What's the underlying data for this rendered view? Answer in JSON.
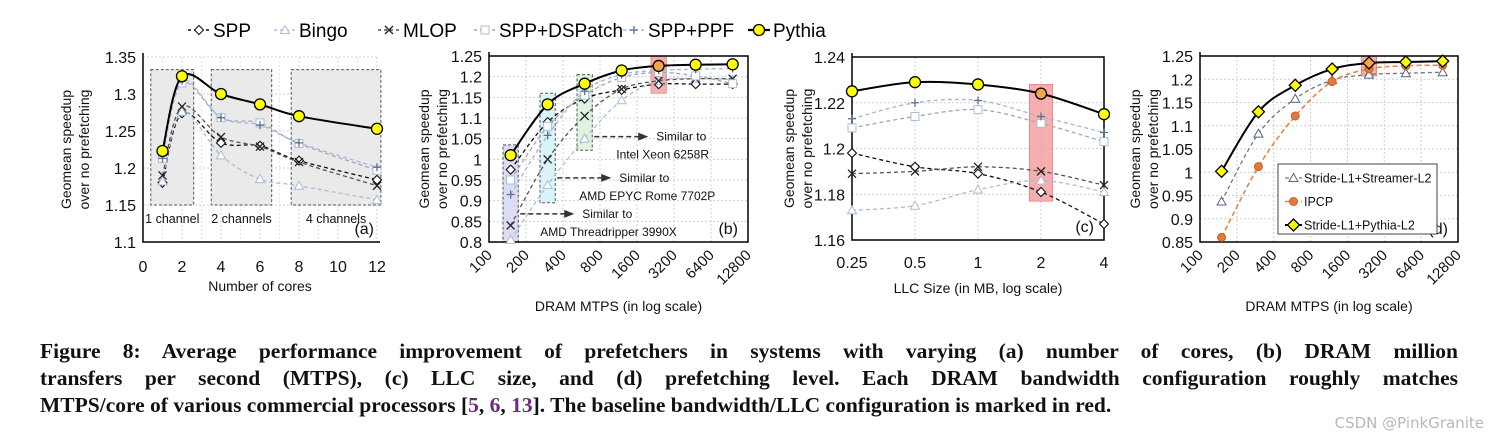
{
  "legend": [
    "SPP",
    "Bingo",
    "MLOP",
    "SPP+DSPatch",
    "SPP+PPF",
    "Pythia"
  ],
  "colors": {
    "pythia_marker": "#ffff00",
    "baseline_highlight": "#f4a0a0",
    "ipcp": "#e07b39",
    "ref": "#6b2d7b"
  },
  "chart_data": [
    {
      "type": "line",
      "panel_label": "(a)",
      "xlabel": "Number of cores",
      "ylabel": [
        "Geomean speedup",
        "over no prefetching"
      ],
      "xscale": "linear",
      "xlim": [
        0,
        12
      ],
      "ylim": [
        1.1,
        1.35
      ],
      "grid": true,
      "xticks": [
        0,
        2,
        4,
        6,
        8,
        10,
        12
      ],
      "yticks": [
        "1.1",
        "1.15",
        "1.2",
        "1.25",
        "1.3",
        "1.35"
      ],
      "x": [
        1,
        2,
        4,
        6,
        8,
        12
      ],
      "series": [
        {
          "name": "SPP",
          "values": [
            1.18,
            1.274,
            1.234,
            1.23,
            1.21,
            1.184
          ]
        },
        {
          "name": "Bingo",
          "values": [
            1.182,
            1.276,
            1.217,
            1.185,
            1.176,
            1.157
          ]
        },
        {
          "name": "MLOP",
          "values": [
            1.19,
            1.283,
            1.242,
            1.229,
            1.208,
            1.176
          ]
        },
        {
          "name": "SPP+DSPatch",
          "values": [
            1.213,
            1.315,
            1.268,
            1.261,
            1.233,
            1.197
          ]
        },
        {
          "name": "SPP+PPF",
          "values": [
            1.213,
            1.318,
            1.268,
            1.258,
            1.234,
            1.201
          ]
        },
        {
          "name": "Pythia",
          "values": [
            1.223,
            1.324,
            1.3,
            1.286,
            1.27,
            1.253
          ]
        }
      ],
      "regions": [
        {
          "label": "1 channel",
          "x": [
            0.4,
            2.6
          ],
          "y": [
            1.15,
            1.333
          ],
          "color": "#e8e8e8"
        },
        {
          "label": "2 channels",
          "x": [
            3.5,
            6.6
          ],
          "y": [
            1.15,
            1.333
          ],
          "color": "#e8e8e8"
        },
        {
          "label": "4 channels",
          "x": [
            7.6,
            12.2
          ],
          "y": [
            1.15,
            1.333
          ],
          "color": "#e8e8e8"
        }
      ]
    },
    {
      "type": "line",
      "panel_label": "(b)",
      "xlabel": "DRAM MTPS (in log scale)",
      "ylabel": [
        "Geomean speedup",
        "over no prefetching"
      ],
      "xscale": "log",
      "xlim": [
        100,
        12800
      ],
      "ylim": [
        0.8,
        1.25
      ],
      "grid": true,
      "xticks": [
        100,
        200,
        400,
        800,
        1600,
        3200,
        6400,
        12800
      ],
      "yticks": [
        "0.8",
        "0.85",
        "0.9",
        "0.95",
        "1",
        "1.05",
        "1.1",
        "1.15",
        "1.2",
        "1.25"
      ],
      "x": [
        150,
        300,
        600,
        1200,
        2400,
        4800,
        9600
      ],
      "series": [
        {
          "name": "SPP",
          "values": [
            0.975,
            1.09,
            1.147,
            1.168,
            1.182,
            1.182,
            1.182
          ]
        },
        {
          "name": "Bingo",
          "values": [
            0.805,
            0.938,
            1.05,
            1.143,
            1.19,
            1.195,
            1.193
          ]
        },
        {
          "name": "MLOP",
          "values": [
            0.84,
            1.0,
            1.105,
            1.17,
            1.19,
            1.195,
            1.195
          ]
        },
        {
          "name": "SPP+DSPatch",
          "values": [
            0.95,
            1.08,
            1.155,
            1.198,
            1.21,
            1.202,
            1.183
          ]
        },
        {
          "name": "SPP+PPF",
          "values": [
            0.915,
            1.058,
            1.165,
            1.205,
            1.215,
            1.218,
            1.22
          ]
        },
        {
          "name": "Pythia",
          "values": [
            1.01,
            1.133,
            1.183,
            1.215,
            1.226,
            1.229,
            1.23
          ]
        }
      ],
      "regions": [
        {
          "x": [
            130,
            173
          ],
          "y": [
            0.8,
            1.035
          ],
          "color": "#d8d8f4"
        },
        {
          "x": [
            260,
            346
          ],
          "y": [
            0.895,
            1.16
          ],
          "color": "#d6f4f8"
        },
        {
          "x": [
            520,
            692
          ],
          "y": [
            1.022,
            1.205
          ],
          "color": "#dcf2dc"
        },
        {
          "x": [
            2080,
            2770
          ],
          "y": [
            1.16,
            1.25
          ],
          "color": "#f4a0a0",
          "solid": true
        }
      ],
      "annotations": [
        {
          "text": [
            "Similar to",
            "Intel Xeon 6258R"
          ],
          "from": [
            692,
            1.055
          ]
        },
        {
          "text": [
            "Similar to",
            "AMD EPYC Rome 7702P"
          ],
          "from": [
            346,
            0.955
          ]
        },
        {
          "text": [
            "Similar to",
            "AMD Threadripper 3990X"
          ],
          "from": [
            173,
            0.868
          ]
        }
      ]
    },
    {
      "type": "line",
      "panel_label": "(c)",
      "xlabel": "LLC Size (in MB, log scale)",
      "ylabel": [
        "Geomean speedup",
        "over no prefetching"
      ],
      "xscale": "log",
      "xlim": [
        0.25,
        4
      ],
      "ylim": [
        1.16,
        1.24
      ],
      "grid": true,
      "xticks": [
        0.25,
        0.5,
        1,
        2,
        4
      ],
      "yticks": [
        "1.16",
        "1.18",
        "1.2",
        "1.22",
        "1.24"
      ],
      "x": [
        0.25,
        0.5,
        1,
        2,
        4
      ],
      "series": [
        {
          "name": "SPP",
          "values": [
            1.198,
            1.192,
            1.189,
            1.181,
            1.167
          ]
        },
        {
          "name": "Bingo",
          "values": [
            1.173,
            1.175,
            1.182,
            1.186,
            1.181
          ]
        },
        {
          "name": "MLOP",
          "values": [
            1.189,
            1.19,
            1.192,
            1.19,
            1.184
          ]
        },
        {
          "name": "SPP+DSPatch",
          "values": [
            1.209,
            1.214,
            1.217,
            1.211,
            1.203
          ]
        },
        {
          "name": "SPP+PPF",
          "values": [
            1.213,
            1.22,
            1.221,
            1.214,
            1.207
          ]
        },
        {
          "name": "Pythia",
          "values": [
            1.225,
            1.229,
            1.228,
            1.224,
            1.215
          ]
        }
      ],
      "regions": [
        {
          "x": [
            1.76,
            2.27
          ],
          "y": [
            1.177,
            1.228
          ],
          "color": "#f4a0a0",
          "solid": true
        }
      ]
    },
    {
      "type": "line",
      "panel_label": "(d)",
      "xlabel": "DRAM MTPS (in log scale)",
      "ylabel": [
        "Geomean speedup",
        "over no prefetching"
      ],
      "xscale": "log",
      "xlim": [
        100,
        12800
      ],
      "ylim": [
        0.85,
        1.25
      ],
      "grid": true,
      "xticks": [
        100,
        200,
        400,
        800,
        1600,
        3200,
        6400,
        12800
      ],
      "yticks": [
        "0.85",
        "0.9",
        "0.95",
        "1",
        "1.05",
        "1.1",
        "1.15",
        "1.2",
        "1.25"
      ],
      "x": [
        150,
        300,
        600,
        1200,
        2400,
        4800,
        9600
      ],
      "legend_position": "bottom-right",
      "series": [
        {
          "name": "Stride-L1+Streamer-L2",
          "values": [
            0.937,
            1.083,
            1.158,
            1.198,
            1.21,
            1.213,
            1.215
          ]
        },
        {
          "name": "IPCP",
          "values": [
            0.86,
            1.012,
            1.121,
            1.195,
            1.222,
            1.229,
            1.23
          ]
        },
        {
          "name": "Stride-L1+Pythia-L2",
          "values": [
            1.002,
            1.13,
            1.187,
            1.222,
            1.235,
            1.237,
            1.239
          ]
        }
      ],
      "regions": [
        {
          "x": [
            2080,
            2770
          ],
          "y": [
            1.207,
            1.25
          ],
          "color": "#f4a0a0",
          "solid": true
        }
      ]
    }
  ],
  "caption": {
    "lines": [
      "Figure 8: Average performance improvement of prefetchers in systems with varying (a) number of cores, (b) DRAM million",
      "transfers per second (MTPS), (c) LLC size, and (d) prefetching level. Each DRAM bandwidth configuration roughly matches"
    ],
    "line3_pre": "MTPS/core of various commercial processors [",
    "refs": [
      "5",
      "6",
      "13"
    ],
    "sep": ", ",
    "line3_post": "]. The baseline bandwidth/LLC configuration is marked in red."
  },
  "watermark": "CSDN @PinkGranite"
}
